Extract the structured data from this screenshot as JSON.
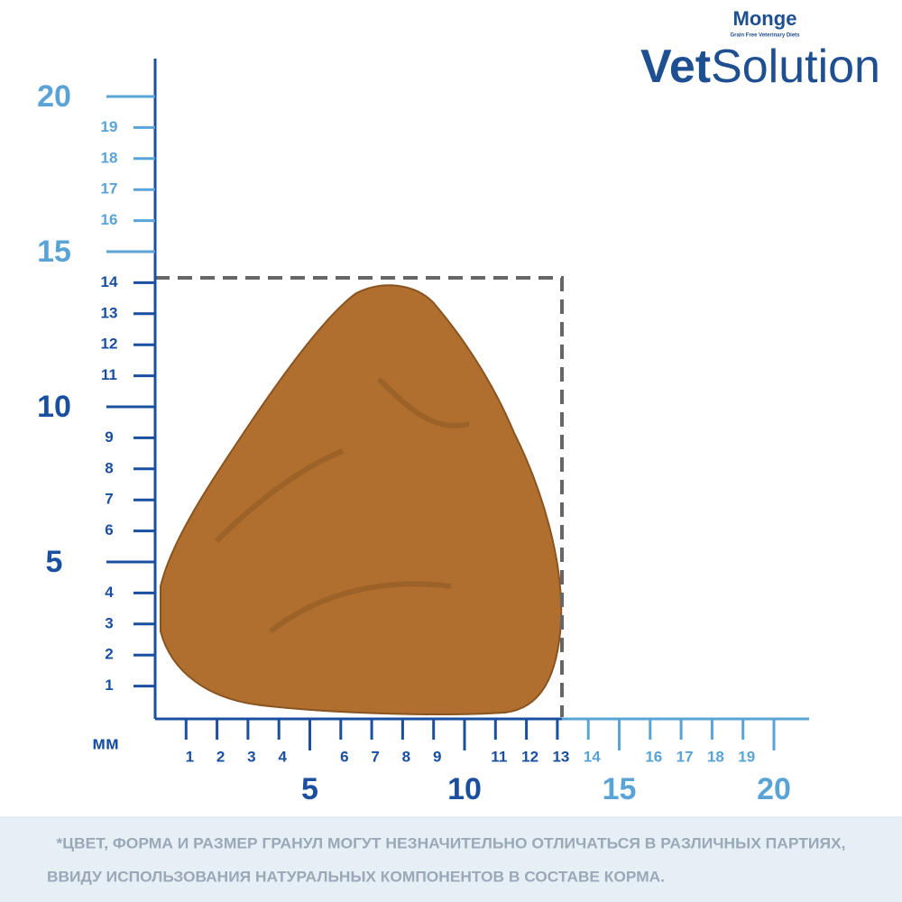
{
  "brand": {
    "maker": "Monge",
    "tagline": "Grain Free Veterinary Diets",
    "product_bold": "Vet",
    "product_light": "Solution"
  },
  "vertical_scale": {
    "blue_minor": [
      1,
      2,
      3,
      4,
      6,
      7,
      8,
      9,
      11,
      12,
      13,
      14
    ],
    "blue_major": [
      5,
      10
    ],
    "light_minor": [
      16,
      17,
      18,
      19
    ],
    "light_major": [
      15,
      20
    ]
  },
  "horizontal_scale": {
    "unit": "мм",
    "blue_minor": [
      1,
      2,
      3,
      4,
      6,
      7,
      8,
      9,
      11,
      12,
      13
    ],
    "blue_major": [
      5,
      10
    ],
    "light_minor": [
      14,
      16,
      17,
      18,
      19
    ],
    "light_major": [
      15,
      20
    ]
  },
  "footnote": {
    "line1": "*ЦВЕТ, ФОРМА И РАЗМЕР ГРАНУЛ МОГУТ НЕЗНАЧИТЕЛЬНО ОТЛИЧАТЬСЯ В РАЗЛИЧНЫХ ПАРТИЯХ,",
    "line2": "ВВИДУ ИСПОЛЬЗОВАНИЯ НАТУРАЛЬНЫХ КОМПОНЕНТОВ В СОСТАВЕ КОРМА."
  }
}
